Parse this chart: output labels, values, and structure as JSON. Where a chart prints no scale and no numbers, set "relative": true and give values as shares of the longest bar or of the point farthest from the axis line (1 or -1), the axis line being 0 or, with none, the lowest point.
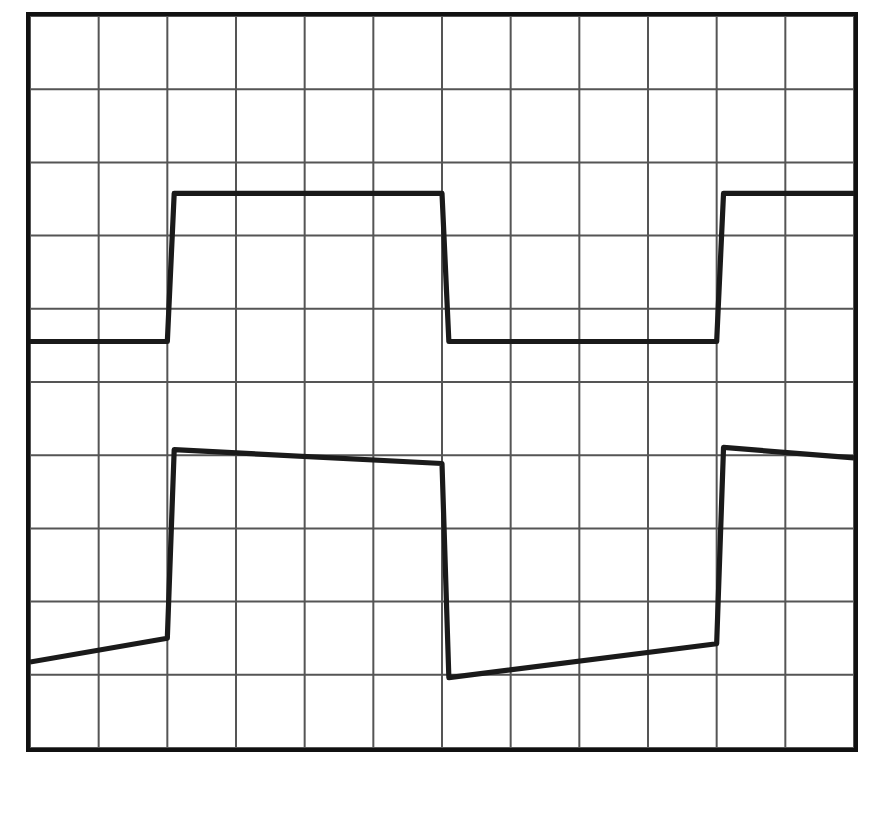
{
  "chart_data": {
    "type": "line",
    "relative": true,
    "grid": true,
    "marker": "none",
    "line_style": "solid",
    "categories": [
      null,
      null,
      null,
      null,
      null,
      null,
      null,
      null,
      null,
      null,
      null,
      null,
      null,
      null,
      null,
      null,
      null,
      null,
      null,
      null,
      null,
      null,
      null,
      null,
      null,
      null,
      null,
      null,
      null,
      null,
      null,
      null,
      null,
      null,
      null,
      null,
      null,
      null,
      null,
      null,
      null,
      null,
      null,
      null,
      null,
      null,
      null,
      null,
      null,
      null,
      null,
      null,
      null,
      null,
      null,
      null,
      null,
      null,
      null,
      null,
      null,
      null,
      null,
      null,
      null,
      null,
      null,
      null,
      null,
      null,
      null,
      null,
      null,
      null,
      null,
      null,
      null,
      null,
      null,
      null,
      null,
      null,
      null,
      null,
      null,
      null,
      null,
      null,
      null,
      null,
      null,
      null,
      null,
      null,
      null,
      null,
      null,
      null,
      null,
      null,
      null,
      null,
      null,
      null,
      null,
      null,
      null,
      null,
      null,
      null,
      null,
      null,
      null,
      null,
      null,
      null,
      null,
      null,
      null,
      null,
      null
    ],
    "series": [
      {
        "color": "#1a1a1a",
        "values": [
          0.733,
          null,
          null,
          null,
          null,
          null,
          null,
          null,
          null,
          null,
          null,
          null,
          null,
          null,
          null,
          null,
          null,
          null,
          null,
          null,
          0.733,
          1,
          null,
          null,
          null,
          null,
          null,
          null,
          null,
          null,
          null,
          null,
          null,
          null,
          null,
          null,
          null,
          null,
          null,
          null,
          null,
          null,
          null,
          null,
          null,
          null,
          null,
          null,
          null,
          null,
          null,
          null,
          null,
          null,
          null,
          null,
          null,
          null,
          null,
          null,
          1,
          0.733,
          null,
          null,
          null,
          null,
          null,
          null,
          null,
          null,
          null,
          null,
          null,
          null,
          null,
          null,
          null,
          null,
          null,
          null,
          null,
          null,
          null,
          null,
          null,
          null,
          null,
          null,
          null,
          null,
          null,
          null,
          null,
          null,
          null,
          null,
          null,
          null,
          null,
          null,
          0.733,
          1,
          null,
          null,
          null,
          null,
          null,
          null,
          null,
          null,
          null,
          null,
          null,
          null,
          null,
          null,
          null,
          null,
          null,
          null,
          1
        ]
      },
      {
        "color": "#1a1a1a",
        "values": [
          0.155,
          null,
          null,
          null,
          null,
          null,
          null,
          null,
          null,
          null,
          null,
          null,
          null,
          null,
          null,
          null,
          null,
          null,
          null,
          null,
          0.198,
          0.538,
          null,
          null,
          null,
          null,
          null,
          null,
          null,
          null,
          null,
          null,
          null,
          null,
          null,
          null,
          null,
          null,
          null,
          null,
          null,
          null,
          null,
          null,
          null,
          null,
          null,
          null,
          null,
          null,
          null,
          null,
          null,
          null,
          null,
          null,
          null,
          null,
          null,
          null,
          0.513,
          0.127,
          null,
          null,
          null,
          null,
          null,
          null,
          null,
          null,
          null,
          null,
          null,
          null,
          null,
          null,
          null,
          null,
          null,
          null,
          null,
          null,
          null,
          null,
          null,
          null,
          null,
          null,
          null,
          null,
          null,
          null,
          null,
          null,
          null,
          null,
          null,
          null,
          null,
          null,
          0.188,
          0.542,
          null,
          null,
          null,
          null,
          null,
          null,
          null,
          null,
          null,
          null,
          null,
          null,
          null,
          null,
          null,
          null,
          null,
          null,
          0.523
        ]
      }
    ]
  }
}
